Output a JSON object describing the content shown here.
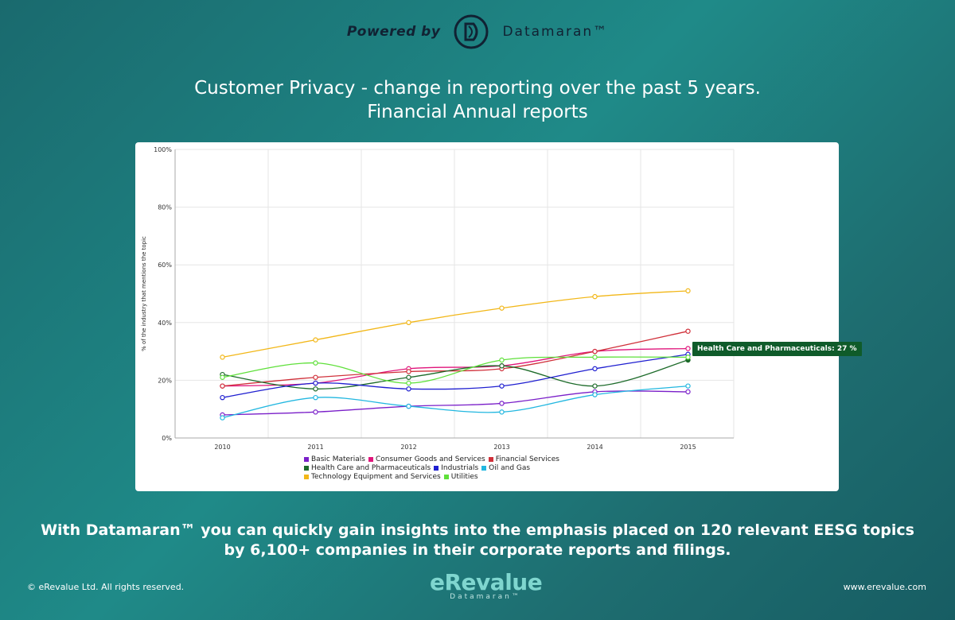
{
  "header": {
    "powered_by": "Powered by",
    "brand_name": "Datamaran™"
  },
  "title": {
    "line1": "Customer Privacy - change in reporting over the past 5 years.",
    "line2": "Financial Annual reports"
  },
  "chart_data": {
    "type": "line",
    "x": [
      "2010",
      "2011",
      "2012",
      "2013",
      "2014",
      "2015"
    ],
    "ylabel": "% of the industry that mentions the topic",
    "xlabel": "",
    "ylim": [
      0,
      100
    ],
    "yticks": [
      "0%",
      "20%",
      "40%",
      "60%",
      "80%",
      "100%"
    ],
    "ytick_values": [
      0,
      20,
      40,
      60,
      80,
      100
    ],
    "grid": true,
    "legend_position": "bottom",
    "series": [
      {
        "name": "Basic Materials",
        "color": "#7a1fc9",
        "values": [
          8,
          9,
          11,
          12,
          16,
          16
        ]
      },
      {
        "name": "Consumer Goods and Services",
        "color": "#e0157b",
        "values": [
          18,
          19,
          24,
          25,
          30,
          31
        ]
      },
      {
        "name": "Financial Services",
        "color": "#d0303a",
        "values": [
          18,
          21,
          23,
          24,
          30,
          37
        ]
      },
      {
        "name": "Health Care and Pharmaceuticals",
        "color": "#1d6b2a",
        "values": [
          22,
          17,
          21,
          25,
          18,
          27
        ]
      },
      {
        "name": "Industrials",
        "color": "#1f1fd0",
        "values": [
          14,
          19,
          17,
          18,
          24,
          29
        ]
      },
      {
        "name": "Oil and Gas",
        "color": "#22b7e0",
        "values": [
          7,
          14,
          11,
          9,
          15,
          18
        ]
      },
      {
        "name": "Technology Equipment and Services",
        "color": "#f2b718",
        "values": [
          28,
          34,
          40,
          45,
          49,
          51
        ]
      },
      {
        "name": "Utilities",
        "color": "#5fe03a",
        "values": [
          21,
          26,
          19,
          27,
          28,
          28
        ]
      }
    ],
    "tooltip": "Health Care and Pharmaceuticals: 27 %"
  },
  "bottom": {
    "line1": "With Datamaran™ you can quickly gain insights into the emphasis placed on 120 relevant EESG topics",
    "line2": "by 6,100+ companies in their corporate reports and filings."
  },
  "footer": {
    "copyright": "© eRevalue Ltd. All rights reserved.",
    "website": "www.erevalue.com",
    "logo_main": "eRevalue",
    "logo_sub": "Datamaran™"
  }
}
